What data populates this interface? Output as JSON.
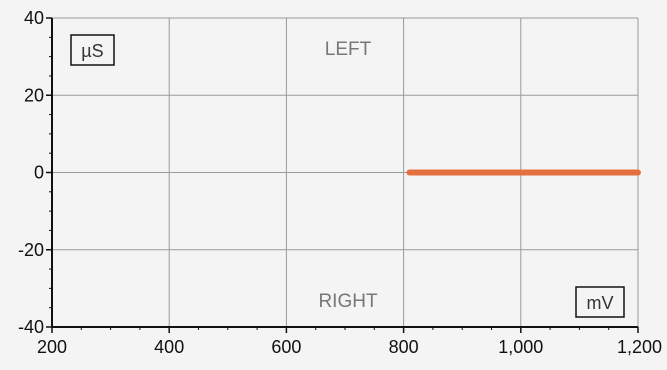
{
  "chart_data": {
    "type": "line",
    "title": "",
    "xlabel": "",
    "ylabel": "",
    "xlim": [
      200,
      1200
    ],
    "ylim": [
      -40,
      40
    ],
    "x_ticks": [
      200,
      400,
      600,
      800,
      1000,
      1200
    ],
    "x_tick_labels": [
      "200",
      "400",
      "600",
      "800",
      "1,000",
      "1,200"
    ],
    "y_ticks": [
      40,
      20,
      0,
      -20,
      -40
    ],
    "y_tick_labels": [
      "40",
      "20",
      "0",
      "-20",
      "-40"
    ],
    "grid": true,
    "series": [
      {
        "x": [
          810,
          1200
        ],
        "y": [
          0,
          0
        ],
        "color": "#e5703e"
      }
    ],
    "annotations": {
      "y_unit": "µS",
      "x_unit": "mV",
      "top_region": "LEFT",
      "bottom_region": "RIGHT"
    }
  },
  "colors": {
    "background": "#f4f4f4",
    "grid": "#9a9a9a",
    "axis": "#111111",
    "series": "#e5703e"
  }
}
